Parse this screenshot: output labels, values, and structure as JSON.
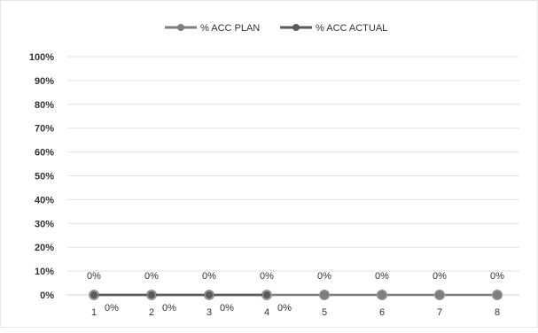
{
  "chart_data": {
    "type": "line",
    "title": "",
    "xlabel": "",
    "ylabel": "",
    "categories": [
      "1",
      "2",
      "3",
      "4",
      "5",
      "6",
      "7",
      "8"
    ],
    "ylim": [
      0,
      1
    ],
    "y_ticks": [
      "0%",
      "10%",
      "20%",
      "30%",
      "40%",
      "50%",
      "60%",
      "70%",
      "80%",
      "90%",
      "100%"
    ],
    "grid": true,
    "legend_position": "top",
    "series": [
      {
        "name": "% ACC PLAN",
        "values": [
          0,
          0,
          0,
          0,
          0,
          0,
          0,
          0
        ],
        "data_labels": [
          "0%",
          "0%",
          "0%",
          "0%",
          "0%",
          "0%",
          "0%",
          "0%"
        ],
        "color": "#7f7f7f"
      },
      {
        "name": "% ACC ACTUAL",
        "values": [
          0,
          0,
          0,
          0,
          null,
          null,
          null,
          null
        ],
        "data_labels": [
          "0%",
          "0%",
          "0%",
          "0%"
        ],
        "color": "#5a5a5a"
      }
    ]
  }
}
